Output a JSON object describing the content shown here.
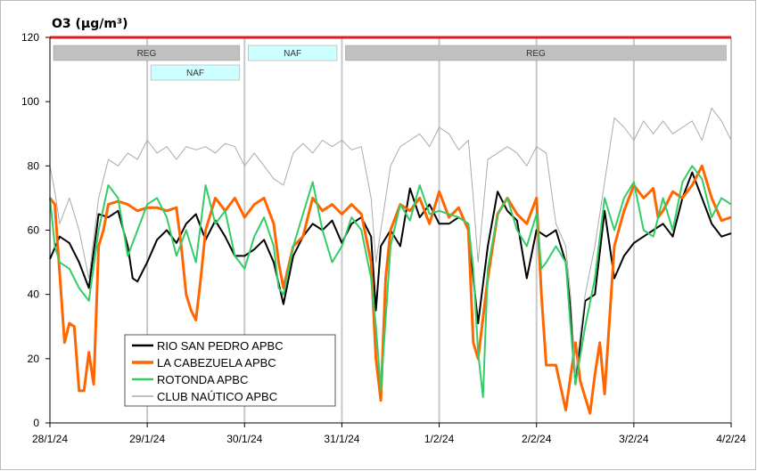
{
  "chart_data": {
    "type": "line",
    "title": "O3 (µg/m³)",
    "xlabel": "",
    "ylabel": "",
    "ylim": [
      0,
      120
    ],
    "yticks": [
      0,
      20,
      40,
      60,
      80,
      100,
      120
    ],
    "xlim": [
      "2024-01-28T00:00",
      "2024-02-04T00:00"
    ],
    "xticks": [
      "28/1/24",
      "29/1/24",
      "30/1/24",
      "31/1/24",
      "1/2/24",
      "2/2/24",
      "3/2/24",
      "4/2/24"
    ],
    "grid": "vertical",
    "legend_position": "bottom-left",
    "threshold": {
      "value": 120,
      "color": "#e41a1c"
    },
    "bands": [
      {
        "label": "REG",
        "start_day": 0,
        "end_day": 1.95,
        "row": 1,
        "color": "#c0c0c0"
      },
      {
        "label": "NAF",
        "start_day": 1.0,
        "end_day": 1.95,
        "row": 2,
        "color": "#ccffff"
      },
      {
        "label": "NAF",
        "start_day": 2.0,
        "end_day": 2.95,
        "row": 1,
        "color": "#ccffff"
      },
      {
        "label": "REG",
        "start_day": 3.0,
        "end_day": 6.95,
        "row": 1,
        "color": "#c0c0c0"
      }
    ],
    "series": [
      {
        "name": "RIO SAN PEDRO APBC",
        "color": "#000000",
        "width": 2,
        "anchors": [
          [
            0,
            51
          ],
          [
            0.1,
            58
          ],
          [
            0.2,
            56
          ],
          [
            0.3,
            50
          ],
          [
            0.4,
            42
          ],
          [
            0.5,
            65
          ],
          [
            0.6,
            64
          ],
          [
            0.7,
            66
          ],
          [
            0.8,
            55
          ],
          [
            0.85,
            45
          ],
          [
            0.9,
            44
          ],
          [
            1.0,
            50
          ],
          [
            1.1,
            57
          ],
          [
            1.2,
            60
          ],
          [
            1.3,
            56
          ],
          [
            1.4,
            62
          ],
          [
            1.5,
            65
          ],
          [
            1.6,
            57
          ],
          [
            1.7,
            63
          ],
          [
            1.8,
            58
          ],
          [
            1.9,
            52
          ],
          [
            2.0,
            52
          ],
          [
            2.1,
            54
          ],
          [
            2.2,
            57
          ],
          [
            2.3,
            50
          ],
          [
            2.4,
            37
          ],
          [
            2.5,
            52
          ],
          [
            2.6,
            58
          ],
          [
            2.7,
            62
          ],
          [
            2.8,
            60
          ],
          [
            2.9,
            63
          ],
          [
            3.0,
            56
          ],
          [
            3.1,
            62
          ],
          [
            3.2,
            64
          ],
          [
            3.3,
            58
          ],
          [
            3.35,
            35
          ],
          [
            3.4,
            55
          ],
          [
            3.5,
            60
          ],
          [
            3.6,
            55
          ],
          [
            3.7,
            73
          ],
          [
            3.8,
            64
          ],
          [
            3.9,
            68
          ],
          [
            4.0,
            62
          ],
          [
            4.1,
            62
          ],
          [
            4.2,
            64
          ],
          [
            4.3,
            62
          ],
          [
            4.35,
            45
          ],
          [
            4.4,
            31
          ],
          [
            4.5,
            55
          ],
          [
            4.6,
            72
          ],
          [
            4.7,
            66
          ],
          [
            4.8,
            63
          ],
          [
            4.9,
            45
          ],
          [
            5.0,
            60
          ],
          [
            5.1,
            58
          ],
          [
            5.2,
            60
          ],
          [
            5.3,
            50
          ],
          [
            5.35,
            35
          ],
          [
            5.4,
            12
          ],
          [
            5.5,
            38
          ],
          [
            5.6,
            40
          ],
          [
            5.7,
            66
          ],
          [
            5.8,
            45
          ],
          [
            5.9,
            52
          ],
          [
            6.0,
            56
          ],
          [
            6.1,
            58
          ],
          [
            6.2,
            60
          ],
          [
            6.3,
            62
          ],
          [
            6.4,
            58
          ],
          [
            6.5,
            70
          ],
          [
            6.6,
            78
          ],
          [
            6.7,
            70
          ],
          [
            6.8,
            62
          ],
          [
            6.9,
            58
          ],
          [
            7.0,
            59
          ]
        ]
      },
      {
        "name": "LA CABEZUELA  APBC",
        "color": "#ff6600",
        "width": 3,
        "anchors": [
          [
            0,
            70
          ],
          [
            0.05,
            68
          ],
          [
            0.15,
            25
          ],
          [
            0.2,
            31
          ],
          [
            0.25,
            30
          ],
          [
            0.3,
            10
          ],
          [
            0.35,
            10
          ],
          [
            0.4,
            22
          ],
          [
            0.45,
            12
          ],
          [
            0.5,
            55
          ],
          [
            0.55,
            60
          ],
          [
            0.6,
            68
          ],
          [
            0.7,
            69
          ],
          [
            0.8,
            68
          ],
          [
            0.9,
            66
          ],
          [
            1.0,
            67
          ],
          [
            1.1,
            67
          ],
          [
            1.2,
            66
          ],
          [
            1.3,
            67
          ],
          [
            1.35,
            55
          ],
          [
            1.4,
            40
          ],
          [
            1.45,
            35
          ],
          [
            1.5,
            32
          ],
          [
            1.55,
            45
          ],
          [
            1.6,
            60
          ],
          [
            1.7,
            70
          ],
          [
            1.8,
            66
          ],
          [
            1.9,
            70
          ],
          [
            2.0,
            64
          ],
          [
            2.1,
            68
          ],
          [
            2.2,
            70
          ],
          [
            2.3,
            62
          ],
          [
            2.35,
            50
          ],
          [
            2.4,
            42
          ],
          [
            2.5,
            55
          ],
          [
            2.6,
            58
          ],
          [
            2.7,
            70
          ],
          [
            2.8,
            66
          ],
          [
            2.9,
            68
          ],
          [
            3.0,
            65
          ],
          [
            3.1,
            68
          ],
          [
            3.2,
            65
          ],
          [
            3.3,
            50
          ],
          [
            3.35,
            20
          ],
          [
            3.4,
            7
          ],
          [
            3.45,
            45
          ],
          [
            3.5,
            60
          ],
          [
            3.6,
            68
          ],
          [
            3.7,
            66
          ],
          [
            3.8,
            70
          ],
          [
            3.9,
            62
          ],
          [
            4.0,
            72
          ],
          [
            4.1,
            64
          ],
          [
            4.2,
            67
          ],
          [
            4.3,
            60
          ],
          [
            4.35,
            25
          ],
          [
            4.4,
            20
          ],
          [
            4.5,
            45
          ],
          [
            4.6,
            65
          ],
          [
            4.7,
            70
          ],
          [
            4.8,
            65
          ],
          [
            4.9,
            62
          ],
          [
            5.0,
            70
          ],
          [
            5.05,
            40
          ],
          [
            5.1,
            18
          ],
          [
            5.2,
            18
          ],
          [
            5.3,
            4
          ],
          [
            5.4,
            25
          ],
          [
            5.45,
            13
          ],
          [
            5.55,
            3
          ],
          [
            5.6,
            15
          ],
          [
            5.65,
            25
          ],
          [
            5.7,
            9
          ],
          [
            5.8,
            55
          ],
          [
            5.9,
            66
          ],
          [
            6.0,
            74
          ],
          [
            6.1,
            70
          ],
          [
            6.2,
            73
          ],
          [
            6.25,
            64
          ],
          [
            6.3,
            66
          ],
          [
            6.4,
            72
          ],
          [
            6.5,
            70
          ],
          [
            6.6,
            74
          ],
          [
            6.7,
            80
          ],
          [
            6.8,
            70
          ],
          [
            6.9,
            63
          ],
          [
            7.0,
            64
          ]
        ]
      },
      {
        "name": "ROTONDA  APBC",
        "color": "#33cc66",
        "width": 2,
        "anchors": [
          [
            0,
            70
          ],
          [
            0.05,
            55
          ],
          [
            0.1,
            50
          ],
          [
            0.2,
            48
          ],
          [
            0.3,
            42
          ],
          [
            0.4,
            38
          ],
          [
            0.5,
            60
          ],
          [
            0.6,
            74
          ],
          [
            0.7,
            70
          ],
          [
            0.8,
            52
          ],
          [
            0.9,
            60
          ],
          [
            1.0,
            68
          ],
          [
            1.1,
            70
          ],
          [
            1.2,
            64
          ],
          [
            1.3,
            52
          ],
          [
            1.4,
            60
          ],
          [
            1.5,
            50
          ],
          [
            1.6,
            74
          ],
          [
            1.7,
            62
          ],
          [
            1.8,
            66
          ],
          [
            1.9,
            52
          ],
          [
            2.0,
            48
          ],
          [
            2.1,
            58
          ],
          [
            2.2,
            64
          ],
          [
            2.3,
            55
          ],
          [
            2.35,
            42
          ],
          [
            2.4,
            40
          ],
          [
            2.5,
            55
          ],
          [
            2.6,
            65
          ],
          [
            2.7,
            75
          ],
          [
            2.8,
            60
          ],
          [
            2.9,
            50
          ],
          [
            3.0,
            55
          ],
          [
            3.1,
            64
          ],
          [
            3.2,
            60
          ],
          [
            3.3,
            45
          ],
          [
            3.35,
            30
          ],
          [
            3.4,
            10
          ],
          [
            3.5,
            55
          ],
          [
            3.6,
            68
          ],
          [
            3.7,
            63
          ],
          [
            3.8,
            74
          ],
          [
            3.9,
            65
          ],
          [
            4.0,
            66
          ],
          [
            4.1,
            65
          ],
          [
            4.2,
            64
          ],
          [
            4.3,
            62
          ],
          [
            4.35,
            48
          ],
          [
            4.4,
            22
          ],
          [
            4.45,
            8
          ],
          [
            4.5,
            48
          ],
          [
            4.6,
            65
          ],
          [
            4.7,
            70
          ],
          [
            4.8,
            60
          ],
          [
            4.9,
            55
          ],
          [
            5.0,
            65
          ],
          [
            5.05,
            48
          ],
          [
            5.1,
            50
          ],
          [
            5.2,
            55
          ],
          [
            5.3,
            50
          ],
          [
            5.35,
            30
          ],
          [
            5.4,
            12
          ],
          [
            5.5,
            30
          ],
          [
            5.6,
            45
          ],
          [
            5.7,
            70
          ],
          [
            5.8,
            60
          ],
          [
            5.9,
            70
          ],
          [
            6.0,
            75
          ],
          [
            6.1,
            60
          ],
          [
            6.2,
            58
          ],
          [
            6.3,
            70
          ],
          [
            6.4,
            60
          ],
          [
            6.5,
            75
          ],
          [
            6.6,
            80
          ],
          [
            6.7,
            76
          ],
          [
            6.8,
            64
          ],
          [
            6.9,
            70
          ],
          [
            7.0,
            68
          ]
        ]
      },
      {
        "name": "CLUB NAÚTICO  APBC",
        "color": "#aaaaaa",
        "width": 1,
        "anchors": [
          [
            0,
            80
          ],
          [
            0.05,
            72
          ],
          [
            0.1,
            62
          ],
          [
            0.2,
            70
          ],
          [
            0.3,
            60
          ],
          [
            0.4,
            45
          ],
          [
            0.5,
            70
          ],
          [
            0.6,
            82
          ],
          [
            0.7,
            80
          ],
          [
            0.8,
            84
          ],
          [
            0.9,
            82
          ],
          [
            1.0,
            88
          ],
          [
            1.1,
            84
          ],
          [
            1.2,
            86
          ],
          [
            1.3,
            82
          ],
          [
            1.4,
            86
          ],
          [
            1.5,
            85
          ],
          [
            1.6,
            86
          ],
          [
            1.7,
            84
          ],
          [
            1.8,
            87
          ],
          [
            1.9,
            86
          ],
          [
            2.0,
            80
          ],
          [
            2.1,
            84
          ],
          [
            2.2,
            80
          ],
          [
            2.3,
            76
          ],
          [
            2.4,
            74
          ],
          [
            2.5,
            84
          ],
          [
            2.6,
            87
          ],
          [
            2.7,
            84
          ],
          [
            2.8,
            88
          ],
          [
            2.9,
            86
          ],
          [
            3.0,
            88
          ],
          [
            3.1,
            85
          ],
          [
            3.2,
            86
          ],
          [
            3.3,
            70
          ],
          [
            3.35,
            50
          ],
          [
            3.4,
            60
          ],
          [
            3.5,
            80
          ],
          [
            3.6,
            86
          ],
          [
            3.7,
            88
          ],
          [
            3.8,
            90
          ],
          [
            3.9,
            86
          ],
          [
            4.0,
            92
          ],
          [
            4.1,
            90
          ],
          [
            4.2,
            85
          ],
          [
            4.3,
            88
          ],
          [
            4.35,
            70
          ],
          [
            4.4,
            50
          ],
          [
            4.5,
            82
          ],
          [
            4.6,
            84
          ],
          [
            4.7,
            86
          ],
          [
            4.8,
            84
          ],
          [
            4.9,
            80
          ],
          [
            5.0,
            86
          ],
          [
            5.1,
            84
          ],
          [
            5.2,
            62
          ],
          [
            5.3,
            55
          ],
          [
            5.35,
            40
          ],
          [
            5.4,
            15
          ],
          [
            5.5,
            40
          ],
          [
            5.6,
            55
          ],
          [
            5.7,
            75
          ],
          [
            5.8,
            95
          ],
          [
            5.9,
            92
          ],
          [
            6.0,
            88
          ],
          [
            6.1,
            94
          ],
          [
            6.2,
            90
          ],
          [
            6.3,
            94
          ],
          [
            6.4,
            90
          ],
          [
            6.5,
            92
          ],
          [
            6.6,
            94
          ],
          [
            6.7,
            88
          ],
          [
            6.8,
            98
          ],
          [
            6.9,
            94
          ],
          [
            7.0,
            88
          ]
        ]
      }
    ]
  }
}
